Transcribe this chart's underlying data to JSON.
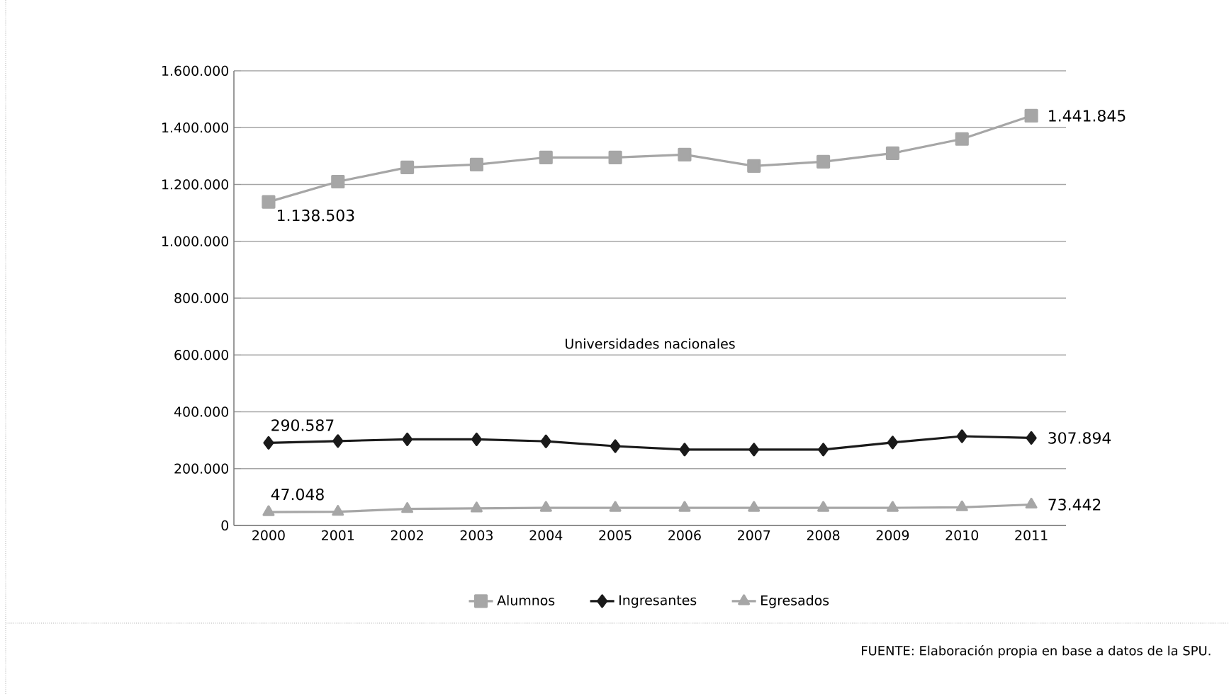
{
  "chart_data": {
    "type": "line",
    "categories": [
      "2000",
      "2001",
      "2002",
      "2003",
      "2004",
      "2005",
      "2006",
      "2007",
      "2008",
      "2009",
      "2010",
      "2011"
    ],
    "series": [
      {
        "name": "Alumnos",
        "color": "#a6a6a6",
        "marker": "square",
        "values": [
          1138503,
          1210000,
          1260000,
          1270000,
          1295000,
          1295000,
          1305000,
          1265000,
          1280000,
          1310000,
          1360000,
          1441845
        ],
        "value_labels": [
          "1.138.503",
          null,
          null,
          null,
          null,
          null,
          null,
          null,
          null,
          null,
          null,
          "1.441.845"
        ]
      },
      {
        "name": "Ingresantes",
        "color": "#1a1a1a",
        "marker": "diamond",
        "values": [
          290587,
          297000,
          303000,
          303000,
          296000,
          279000,
          267000,
          267000,
          267000,
          292000,
          314000,
          307894
        ],
        "value_labels": [
          "290.587",
          null,
          null,
          null,
          null,
          null,
          null,
          null,
          null,
          null,
          null,
          "307.894"
        ]
      },
      {
        "name": "Egresados",
        "color": "#a6a6a6",
        "marker": "triangle",
        "values": [
          47048,
          48000,
          58000,
          60000,
          62000,
          62000,
          62000,
          62000,
          62000,
          62000,
          64000,
          73442
        ],
        "value_labels": [
          "47.048",
          null,
          null,
          null,
          null,
          null,
          null,
          null,
          null,
          null,
          null,
          "73.442"
        ]
      }
    ],
    "ylim": [
      0,
      1600000
    ],
    "yticks": [
      {
        "value": 0,
        "label": "0"
      },
      {
        "value": 200000,
        "label": "200.000"
      },
      {
        "value": 400000,
        "label": "400.000"
      },
      {
        "value": 600000,
        "label": "600.000"
      },
      {
        "value": 800000,
        "label": "800.000"
      },
      {
        "value": 1000000,
        "label": "1.000.000"
      },
      {
        "value": 1200000,
        "label": "1.200.000"
      },
      {
        "value": 1400000,
        "label": "1.400.000"
      },
      {
        "value": 1600000,
        "label": "1.600.000"
      }
    ],
    "grid": "y",
    "legend": "bottom",
    "annotations": [
      "Universidades nacionales",
      "FUENTE: Elaboración propia en base a datos de la SPU."
    ]
  }
}
